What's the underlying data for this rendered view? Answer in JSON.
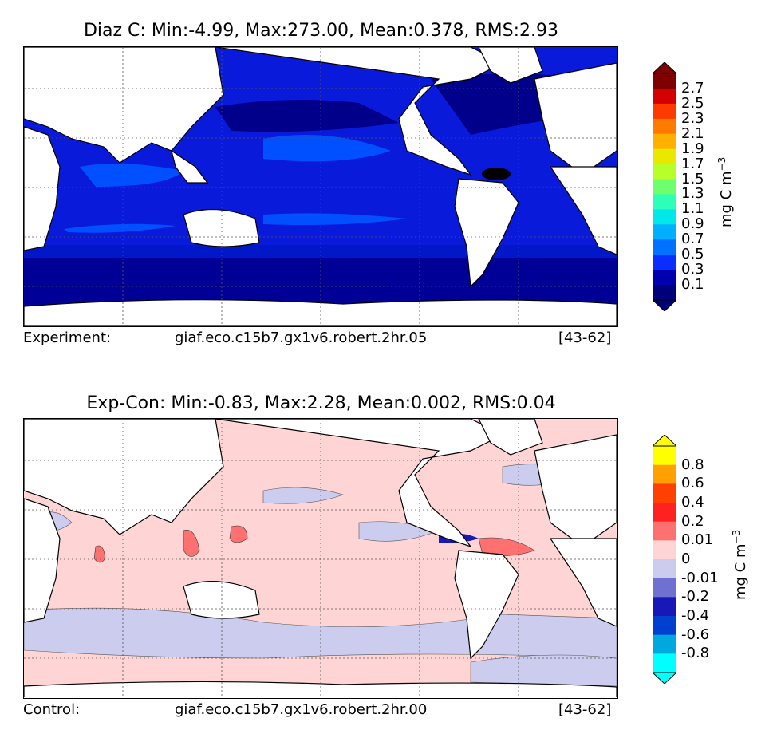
{
  "top": {
    "title": "Diaz C: Min:-4.99, Max:273.00, Mean:0.378, RMS:2.93",
    "footer_label": "Experiment:",
    "footer_run": "giaf.eco.c15b7.gx1v6.robert.2hr.05",
    "footer_years": "[43-62]",
    "colorbar": {
      "ticks": [
        "2.7",
        "2.5",
        "2.3",
        "2.1",
        "1.9",
        "1.7",
        "1.5",
        "1.3",
        "1.1",
        "0.9",
        "0.7",
        "0.5",
        "0.3",
        "0.1"
      ],
      "colors": [
        "#7f0000",
        "#d40000",
        "#ff3a00",
        "#ff7a00",
        "#ffb000",
        "#e8e800",
        "#b8ff2a",
        "#6eff6e",
        "#2effb8",
        "#00e8e8",
        "#00b0ff",
        "#0072ff",
        "#0a2eff",
        "#0000b0",
        "#00007a"
      ],
      "unit": "mg C m",
      "unit_exp": "−3"
    }
  },
  "bottom": {
    "title": "Exp-Con: Min:-0.83, Max:2.28, Mean:0.002, RMS:0.04",
    "footer_label": "Control:",
    "footer_run": "giaf.eco.c15b7.gx1v6.robert.2hr.00",
    "footer_years": "[43-62]",
    "colorbar": {
      "ticks": [
        "0.8",
        "0.6",
        "0.4",
        "0.2",
        "0.01",
        "0",
        "-0.01",
        "-0.2",
        "-0.4",
        "-0.6",
        "-0.8"
      ],
      "colors": [
        "#ffff00",
        "#ffa000",
        "#ff4000",
        "#ff2020",
        "#ff7070",
        "#ffd4d4",
        "#ccccee",
        "#7070d0",
        "#1818b8",
        "#0040d0",
        "#00a8e0",
        "#00ffff"
      ],
      "unit": "mg C m",
      "unit_exp": "−3"
    }
  }
}
